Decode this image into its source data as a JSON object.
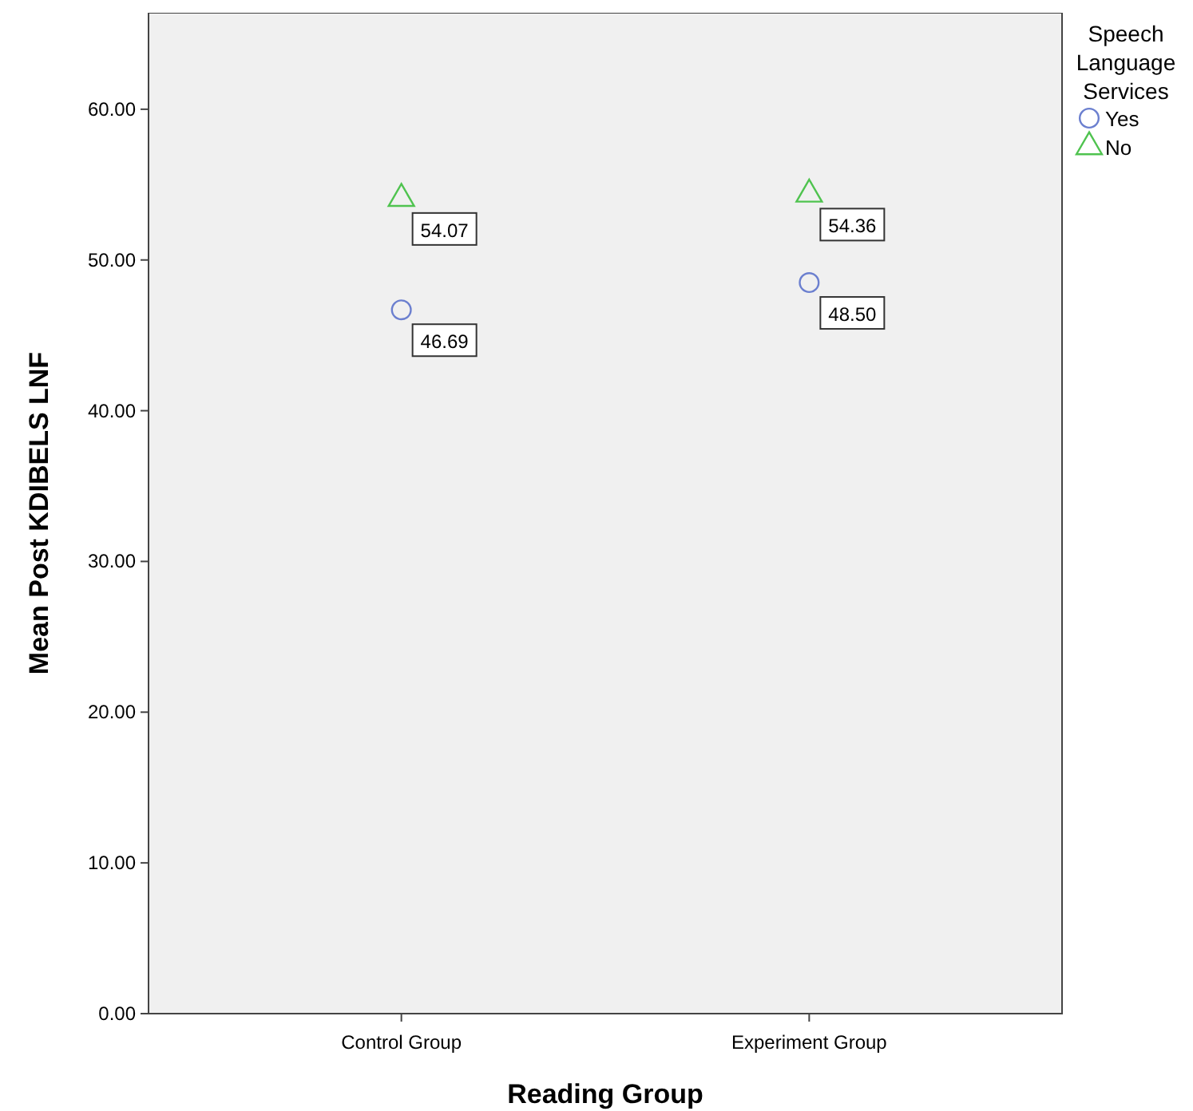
{
  "chart_data": {
    "type": "scatter",
    "xlabel": "Reading Group",
    "ylabel": "Mean Post KDIBELS LNF",
    "legend_title": "Speech Language Services",
    "categories": [
      "Control Group",
      "Experiment Group"
    ],
    "series": [
      {
        "name": "Yes",
        "color": "#6b7fcf",
        "marker": "circle",
        "values": [
          46.69,
          48.5
        ],
        "value_labels": [
          "46.69",
          "48.50"
        ]
      },
      {
        "name": "No",
        "color": "#4fc34f",
        "marker": "triangle",
        "values": [
          54.07,
          54.36
        ],
        "value_labels": [
          "54.07",
          "54.36"
        ]
      }
    ],
    "ylim": [
      0,
      66.4
    ],
    "yticks": [
      {
        "value": 0,
        "label": "0.00"
      },
      {
        "value": 10,
        "label": "10.00"
      },
      {
        "value": 20,
        "label": "20.00"
      },
      {
        "value": 30,
        "label": "30.00"
      },
      {
        "value": 40,
        "label": "40.00"
      },
      {
        "value": 50,
        "label": "50.00"
      },
      {
        "value": 60,
        "label": "60.00"
      }
    ],
    "grid": false,
    "legend": "top right"
  }
}
